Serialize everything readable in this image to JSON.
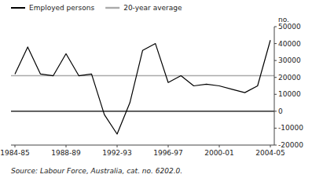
{
  "chart_data": {
    "type": "line",
    "y_label": "no.",
    "source": "Source: Labour Force, Australia, cat. no. 6202.0.",
    "categories": [
      "1984-85",
      null,
      null,
      null,
      "1988-89",
      null,
      null,
      null,
      "1992-93",
      null,
      null,
      null,
      "1996-97",
      null,
      null,
      null,
      "2000-01",
      null,
      null,
      null,
      "2004-05"
    ],
    "series": [
      {
        "name": "Employed persons",
        "color": "#000000",
        "values": [
          22000,
          38000,
          22000,
          21000,
          34000,
          21000,
          22000,
          -2000,
          -13500,
          5000,
          36000,
          40000,
          17000,
          21000,
          15000,
          16000,
          15000,
          13000,
          11000,
          15000,
          42000
        ]
      }
    ],
    "average": {
      "name": "20-year average",
      "value": 21000,
      "color": "#aaaaaa"
    },
    "ylim": [
      -20000,
      50000
    ],
    "yticks": [
      -20000,
      -10000,
      0,
      10000,
      20000,
      30000,
      40000,
      50000
    ],
    "grid": false,
    "legend": "top"
  }
}
